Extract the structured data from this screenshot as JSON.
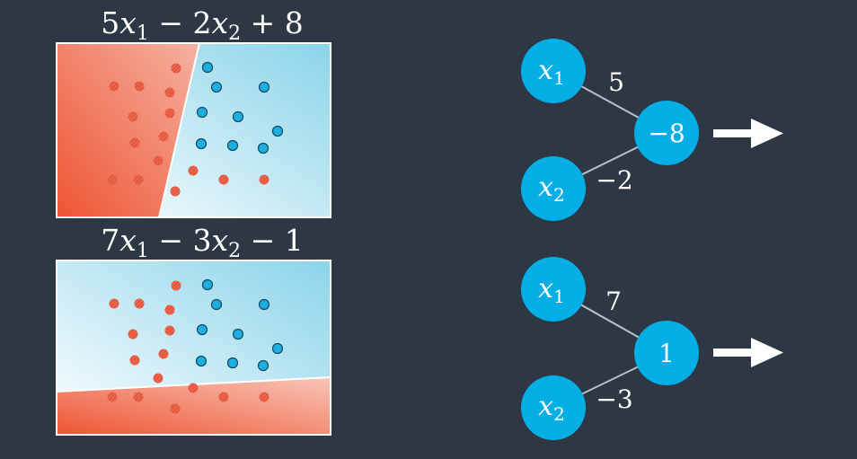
{
  "colors": {
    "background": "#2e3845",
    "red_region": "#ee5a3e",
    "blue_region": "#8fd6ea",
    "red_point": "#e5573d",
    "blue_point": "#1faee0",
    "node": "#06aee6",
    "edge": "#b8c2cc",
    "arrow": "#ffffff"
  },
  "panels": [
    {
      "equation": {
        "c1": "5",
        "v1": "x",
        "s1": "1",
        "op1": "−",
        "c2": "2",
        "v2": "x",
        "s2": "2",
        "op2": "+",
        "c3": "8"
      },
      "boundary": "steep"
    },
    {
      "equation": {
        "c1": "7",
        "v1": "x",
        "s1": "1",
        "op1": "−",
        "c2": "3",
        "v2": "x",
        "s2": "2",
        "op2": "−",
        "c3": "1"
      },
      "boundary": "flat"
    }
  ],
  "networks": [
    {
      "input1": {
        "var": "x",
        "sub": "1"
      },
      "input2": {
        "var": "x",
        "sub": "2"
      },
      "weight1": "5",
      "weight2": "−2",
      "bias": "−8",
      "output_icon": "right-arrow-icon"
    },
    {
      "input1": {
        "var": "x",
        "sub": "1"
      },
      "input2": {
        "var": "x",
        "sub": "2"
      },
      "weight1": "7",
      "weight2": "−3",
      "bias": "1",
      "output_icon": "right-arrow-icon"
    }
  ]
}
